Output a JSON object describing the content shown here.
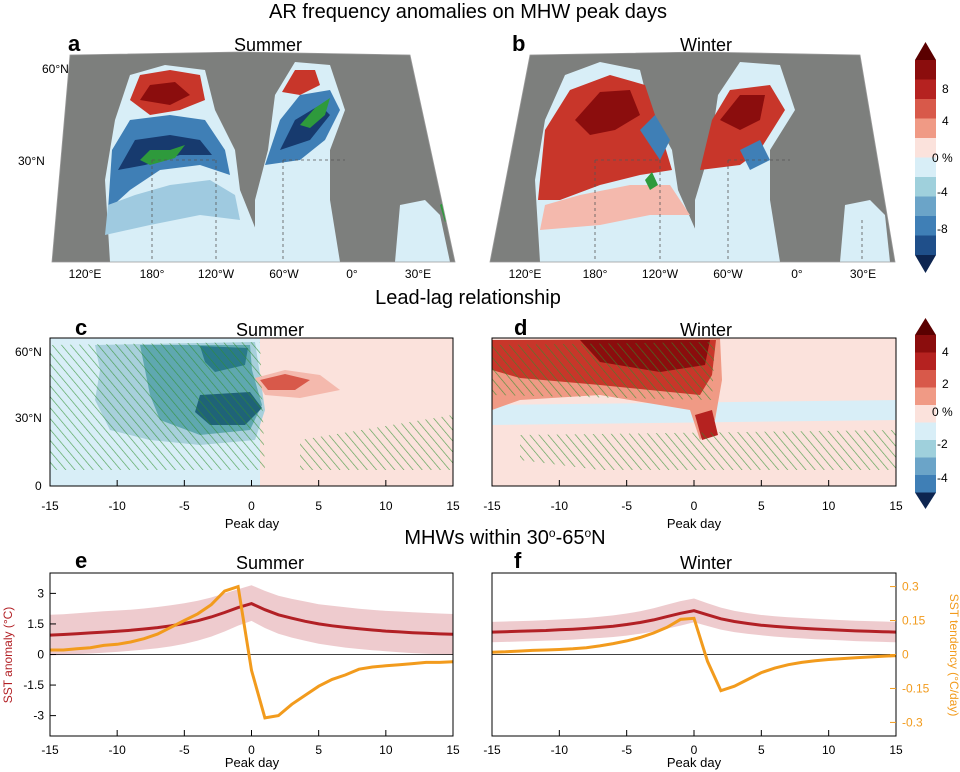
{
  "figure": {
    "row1_title": "AR frequency anomalies on MHW peak days",
    "row2_title": "Lead-lag relationship",
    "row3_title_prefix": "MHWs within 30",
    "row3_title_mid": "-65",
    "row3_title_suffix": "N",
    "degree_o": "o"
  },
  "colors": {
    "ocean_gray": "#7d7f7d",
    "dark_red": "#8b0d0d",
    "red": "#c8362a",
    "light_red": "#f4b9ad",
    "pale_pink": "#fbe2dc",
    "pale_blue": "#d8eef7",
    "light_blue": "#9fcae0",
    "blue": "#3f7fb6",
    "dark_blue": "#173a6e",
    "green": "#2e9a3c",
    "teal": "#2f8f8c",
    "sst_anomaly": "#b22025",
    "sst_band": "#e8b9bd",
    "sst_tendency": "#f29b1d"
  },
  "chart_data": [
    {
      "panel": "a",
      "type": "heatmap",
      "title": "Summer",
      "x_ticks": [
        "120°E",
        "180°",
        "120°W",
        "60°W",
        "0°",
        "30°E"
      ],
      "y_ticks": [
        "30°N",
        "60°N"
      ],
      "colorbar": {
        "ticks": [
          "8",
          "4",
          "0 %",
          "-4",
          "-8"
        ],
        "levels": [
          -10,
          -8,
          -6,
          -4,
          -2,
          0,
          2,
          4,
          6,
          8,
          10
        ]
      },
      "features": [
        "negative anomalies (blue) across mid-latitude North Pacific and North Atlantic",
        "positive anomalies (red) in subpolar North Pacific and North Atlantic",
        "gray land / masked regions"
      ]
    },
    {
      "panel": "b",
      "type": "heatmap",
      "title": "Winter",
      "x_ticks": [
        "120°E",
        "180°",
        "120°W",
        "60°W",
        "0°",
        "30°E"
      ],
      "y_ticks": [
        "30°N",
        "60°N"
      ],
      "features": [
        "widespread positive anomalies (red) in North Pacific and North Atlantic mid-latitudes"
      ]
    },
    {
      "panel": "c",
      "type": "heatmap",
      "title": "Summer",
      "xlabel": "Peak day",
      "x_ticks": [
        -15,
        -10,
        -5,
        0,
        5,
        10,
        15
      ],
      "y_ticks": [
        "0",
        "30°N",
        "60°N"
      ],
      "xlim": [
        -15,
        15
      ],
      "ylim": [
        0,
        70
      ],
      "colorbar": {
        "ticks": [
          "4",
          "2",
          "0 %",
          "-2",
          "-4"
        ],
        "levels": [
          -5,
          -4,
          -3,
          -2,
          -1,
          0,
          1,
          2,
          3,
          4,
          5
        ]
      },
      "features": [
        "negative anomalies (teal/blue) before peak day at 30-65°N, strongest near day -2",
        "hatching marks significance"
      ]
    },
    {
      "panel": "d",
      "type": "heatmap",
      "title": "Winter",
      "xlabel": "Peak day",
      "x_ticks": [
        -15,
        -10,
        -5,
        0,
        5,
        10,
        15
      ],
      "y_ticks": [
        "0",
        "30°N",
        "60°N"
      ],
      "xlim": [
        -15,
        15
      ],
      "ylim": [
        0,
        70
      ],
      "features": [
        "positive anomalies (red) before peak day at 40-70°N, strongest near day -3"
      ]
    },
    {
      "panel": "e",
      "type": "line",
      "title": "Summer",
      "xlabel": "Peak day",
      "ylabel": "SST anomaly (°C)",
      "xlim": [
        -15,
        15
      ],
      "ylim": [
        -4,
        4
      ],
      "y_ticks": [
        "3",
        "1.5",
        "0",
        "-1.5",
        "-3"
      ],
      "x_ticks": [
        -15,
        -10,
        -5,
        0,
        5,
        10,
        15
      ],
      "x": [
        -15,
        -14,
        -13,
        -12,
        -11,
        -10,
        -9,
        -8,
        -7,
        -6,
        -5,
        -4,
        -3,
        -2,
        -1,
        0,
        1,
        2,
        3,
        4,
        5,
        6,
        7,
        8,
        9,
        10,
        11,
        12,
        13,
        14,
        15
      ],
      "series": [
        {
          "values": [
            0.95,
            0.98,
            1.02,
            1.06,
            1.1,
            1.14,
            1.19,
            1.25,
            1.32,
            1.41,
            1.52,
            1.66,
            1.84,
            2.06,
            2.3,
            2.5,
            2.2,
            1.95,
            1.78,
            1.63,
            1.5,
            1.41,
            1.33,
            1.26,
            1.2,
            1.15,
            1.11,
            1.07,
            1.04,
            1.01,
            0.99
          ],
          "lower": [
            -0.05,
            -0.02,
            0.02,
            0.05,
            0.09,
            0.13,
            0.18,
            0.24,
            0.31,
            0.4,
            0.52,
            0.68,
            0.88,
            1.13,
            1.42,
            1.65,
            1.3,
            1.02,
            0.83,
            0.67,
            0.53,
            0.43,
            0.34,
            0.27,
            0.21,
            0.16,
            0.11,
            0.07,
            0.04,
            0.01,
            -0.02
          ],
          "upper": [
            1.95,
            1.98,
            2.02,
            2.07,
            2.12,
            2.16,
            2.2,
            2.26,
            2.33,
            2.42,
            2.52,
            2.64,
            2.8,
            3.0,
            3.2,
            3.4,
            3.12,
            2.88,
            2.73,
            2.6,
            2.47,
            2.39,
            2.32,
            2.25,
            2.19,
            2.14,
            2.11,
            2.07,
            2.04,
            2.01,
            1.99
          ]
        },
        {
          "axis": "right",
          "ylabel": "SST tendency (°C/day)",
          "ylim": [
            -0.36,
            0.36
          ],
          "y_ticks": [
            "0.3",
            "0.15",
            "0",
            "-0.15",
            "-0.3"
          ],
          "values": [
            0.02,
            0.02,
            0.025,
            0.03,
            0.04,
            0.045,
            0.055,
            0.07,
            0.09,
            0.12,
            0.15,
            0.18,
            0.22,
            0.28,
            0.3,
            -0.07,
            -0.28,
            -0.27,
            -0.22,
            -0.18,
            -0.14,
            -0.11,
            -0.09,
            -0.065,
            -0.055,
            -0.05,
            -0.045,
            -0.04,
            -0.035,
            -0.035,
            -0.032
          ]
        }
      ]
    },
    {
      "panel": "f",
      "type": "line",
      "title": "Winter",
      "xlabel": "Peak day",
      "ylabel": "SST anomaly (°C)",
      "xlim": [
        -15,
        15
      ],
      "ylim": [
        -4,
        4
      ],
      "x_ticks": [
        -15,
        -10,
        -5,
        0,
        5,
        10,
        15
      ],
      "x": [
        -15,
        -14,
        -13,
        -12,
        -11,
        -10,
        -9,
        -8,
        -7,
        -6,
        -5,
        -4,
        -3,
        -2,
        -1,
        0,
        1,
        2,
        3,
        4,
        5,
        6,
        7,
        8,
        9,
        10,
        11,
        12,
        13,
        14,
        15
      ],
      "series": [
        {
          "values": [
            1.1,
            1.12,
            1.14,
            1.16,
            1.18,
            1.21,
            1.24,
            1.28,
            1.33,
            1.39,
            1.47,
            1.57,
            1.7,
            1.86,
            2.02,
            2.15,
            1.95,
            1.75,
            1.62,
            1.52,
            1.44,
            1.38,
            1.33,
            1.29,
            1.25,
            1.22,
            1.19,
            1.16,
            1.14,
            1.12,
            1.1
          ],
          "lower": [
            0.6,
            0.62,
            0.64,
            0.66,
            0.68,
            0.7,
            0.73,
            0.77,
            0.81,
            0.86,
            0.93,
            1.02,
            1.13,
            1.27,
            1.42,
            1.58,
            1.4,
            1.22,
            1.1,
            1.01,
            0.94,
            0.88,
            0.83,
            0.79,
            0.75,
            0.72,
            0.69,
            0.66,
            0.64,
            0.62,
            0.6
          ],
          "upper": [
            1.6,
            1.62,
            1.64,
            1.66,
            1.69,
            1.72,
            1.75,
            1.79,
            1.85,
            1.92,
            2.01,
            2.12,
            2.27,
            2.45,
            2.62,
            2.75,
            2.52,
            2.3,
            2.14,
            2.03,
            1.94,
            1.88,
            1.83,
            1.79,
            1.75,
            1.72,
            1.69,
            1.66,
            1.64,
            1.62,
            1.6
          ]
        },
        {
          "axis": "right",
          "ylabel": "SST tendency (°C/day)",
          "ylim": [
            -0.36,
            0.36
          ],
          "y_ticks": [
            "0.3",
            "0.15",
            "0",
            "-0.15",
            "-0.3"
          ],
          "values": [
            0.01,
            0.012,
            0.015,
            0.018,
            0.02,
            0.022,
            0.025,
            0.03,
            0.038,
            0.048,
            0.06,
            0.075,
            0.095,
            0.12,
            0.155,
            0.16,
            -0.03,
            -0.16,
            -0.14,
            -0.11,
            -0.08,
            -0.06,
            -0.045,
            -0.035,
            -0.028,
            -0.022,
            -0.018,
            -0.014,
            -0.011,
            -0.008,
            -0.005
          ]
        }
      ]
    }
  ]
}
